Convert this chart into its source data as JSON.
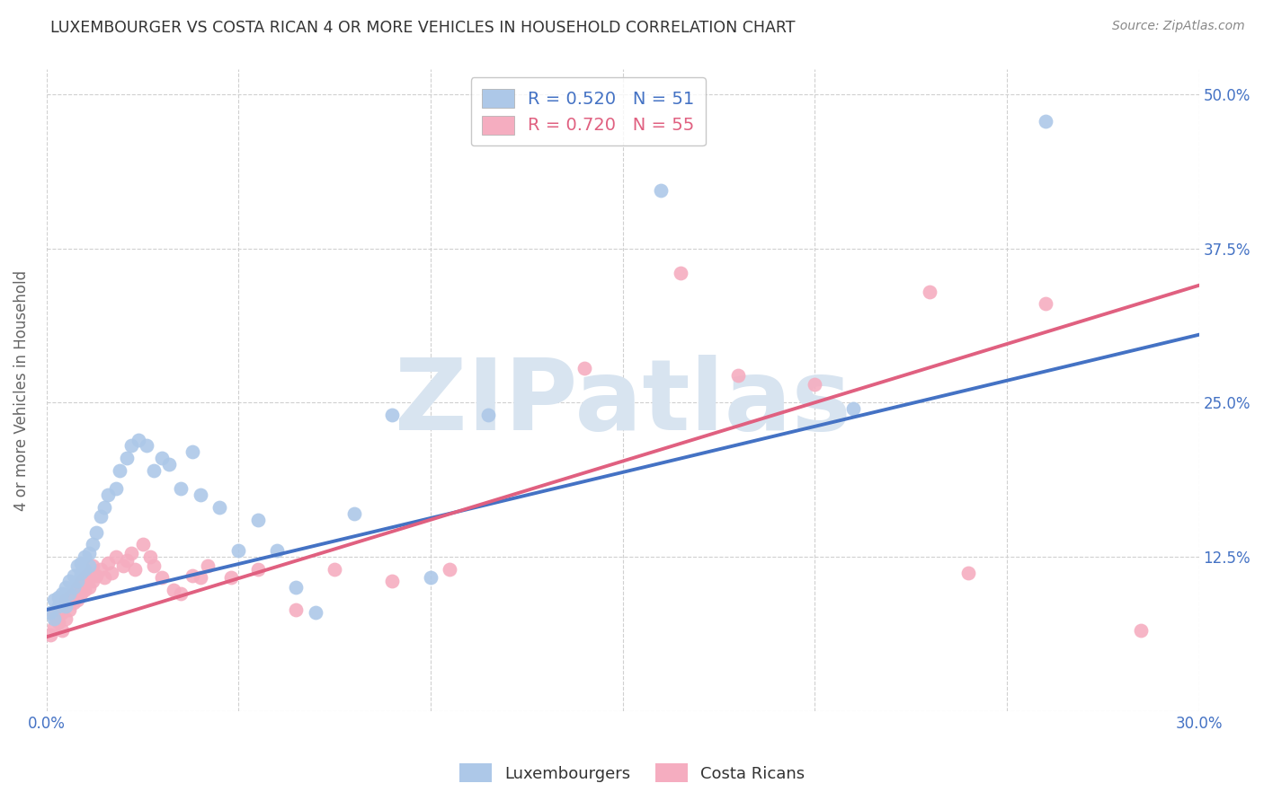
{
  "title": "LUXEMBOURGER VS COSTA RICAN 4 OR MORE VEHICLES IN HOUSEHOLD CORRELATION CHART",
  "source": "Source: ZipAtlas.com",
  "ylabel": "4 or more Vehicles in Household",
  "xlim": [
    0.0,
    0.3
  ],
  "ylim": [
    0.03,
    0.52
  ],
  "xtick_positions": [
    0.0,
    0.05,
    0.1,
    0.15,
    0.2,
    0.25,
    0.3
  ],
  "xtick_labels": [
    "0.0%",
    "",
    "",
    "",
    "",
    "",
    "30.0%"
  ],
  "ytick_positions": [
    0.0,
    0.125,
    0.25,
    0.375,
    0.5
  ],
  "ytick_labels": [
    "",
    "12.5%",
    "25.0%",
    "37.5%",
    "50.0%"
  ],
  "blue_R": 0.52,
  "blue_N": 51,
  "pink_R": 0.72,
  "pink_N": 55,
  "blue_color": "#adc8e8",
  "pink_color": "#f5adc0",
  "blue_line_color": "#4472c4",
  "pink_line_color": "#e06080",
  "legend_label_blue": "Luxembourgers",
  "legend_label_pink": "Costa Ricans",
  "blue_line_x0": 0.0,
  "blue_line_y0": 0.082,
  "blue_line_x1": 0.3,
  "blue_line_y1": 0.305,
  "pink_line_x0": 0.0,
  "pink_line_y0": 0.06,
  "pink_line_x1": 0.3,
  "pink_line_y1": 0.345,
  "blue_scatter_x": [
    0.001,
    0.002,
    0.002,
    0.003,
    0.003,
    0.004,
    0.004,
    0.005,
    0.005,
    0.006,
    0.006,
    0.007,
    0.007,
    0.008,
    0.008,
    0.009,
    0.009,
    0.01,
    0.01,
    0.011,
    0.011,
    0.012,
    0.013,
    0.014,
    0.015,
    0.016,
    0.018,
    0.019,
    0.021,
    0.022,
    0.024,
    0.026,
    0.028,
    0.03,
    0.032,
    0.035,
    0.038,
    0.04,
    0.045,
    0.05,
    0.055,
    0.06,
    0.065,
    0.07,
    0.08,
    0.09,
    0.1,
    0.115,
    0.16,
    0.21,
    0.26
  ],
  "blue_scatter_y": [
    0.08,
    0.075,
    0.09,
    0.085,
    0.092,
    0.095,
    0.088,
    0.085,
    0.1,
    0.095,
    0.105,
    0.1,
    0.11,
    0.105,
    0.118,
    0.112,
    0.12,
    0.115,
    0.125,
    0.118,
    0.128,
    0.135,
    0.145,
    0.158,
    0.165,
    0.175,
    0.18,
    0.195,
    0.205,
    0.215,
    0.22,
    0.215,
    0.195,
    0.205,
    0.2,
    0.18,
    0.21,
    0.175,
    0.165,
    0.13,
    0.155,
    0.13,
    0.1,
    0.08,
    0.16,
    0.24,
    0.108,
    0.24,
    0.422,
    0.245,
    0.478
  ],
  "pink_scatter_x": [
    0.001,
    0.002,
    0.002,
    0.003,
    0.004,
    0.004,
    0.005,
    0.005,
    0.006,
    0.006,
    0.007,
    0.007,
    0.008,
    0.008,
    0.009,
    0.009,
    0.01,
    0.01,
    0.011,
    0.011,
    0.012,
    0.012,
    0.013,
    0.014,
    0.015,
    0.016,
    0.017,
    0.018,
    0.02,
    0.021,
    0.022,
    0.023,
    0.025,
    0.027,
    0.028,
    0.03,
    0.033,
    0.035,
    0.038,
    0.04,
    0.042,
    0.048,
    0.055,
    0.065,
    0.075,
    0.09,
    0.105,
    0.14,
    0.165,
    0.18,
    0.2,
    0.23,
    0.24,
    0.26,
    0.285
  ],
  "pink_scatter_y": [
    0.062,
    0.068,
    0.078,
    0.072,
    0.065,
    0.08,
    0.075,
    0.09,
    0.082,
    0.092,
    0.088,
    0.095,
    0.09,
    0.1,
    0.095,
    0.105,
    0.098,
    0.108,
    0.1,
    0.112,
    0.105,
    0.118,
    0.11,
    0.115,
    0.108,
    0.12,
    0.112,
    0.125,
    0.118,
    0.122,
    0.128,
    0.115,
    0.135,
    0.125,
    0.118,
    0.108,
    0.098,
    0.095,
    0.11,
    0.108,
    0.118,
    0.108,
    0.115,
    0.082,
    0.115,
    0.105,
    0.115,
    0.278,
    0.355,
    0.272,
    0.265,
    0.34,
    0.112,
    0.33,
    0.065
  ],
  "watermark_text": "ZIPatlas",
  "watermark_color": "#d8e4f0",
  "background_color": "#ffffff",
  "grid_color": "#d0d0d0",
  "text_color": "#333333",
  "axis_label_color": "#666666",
  "tick_color": "#4472c4"
}
